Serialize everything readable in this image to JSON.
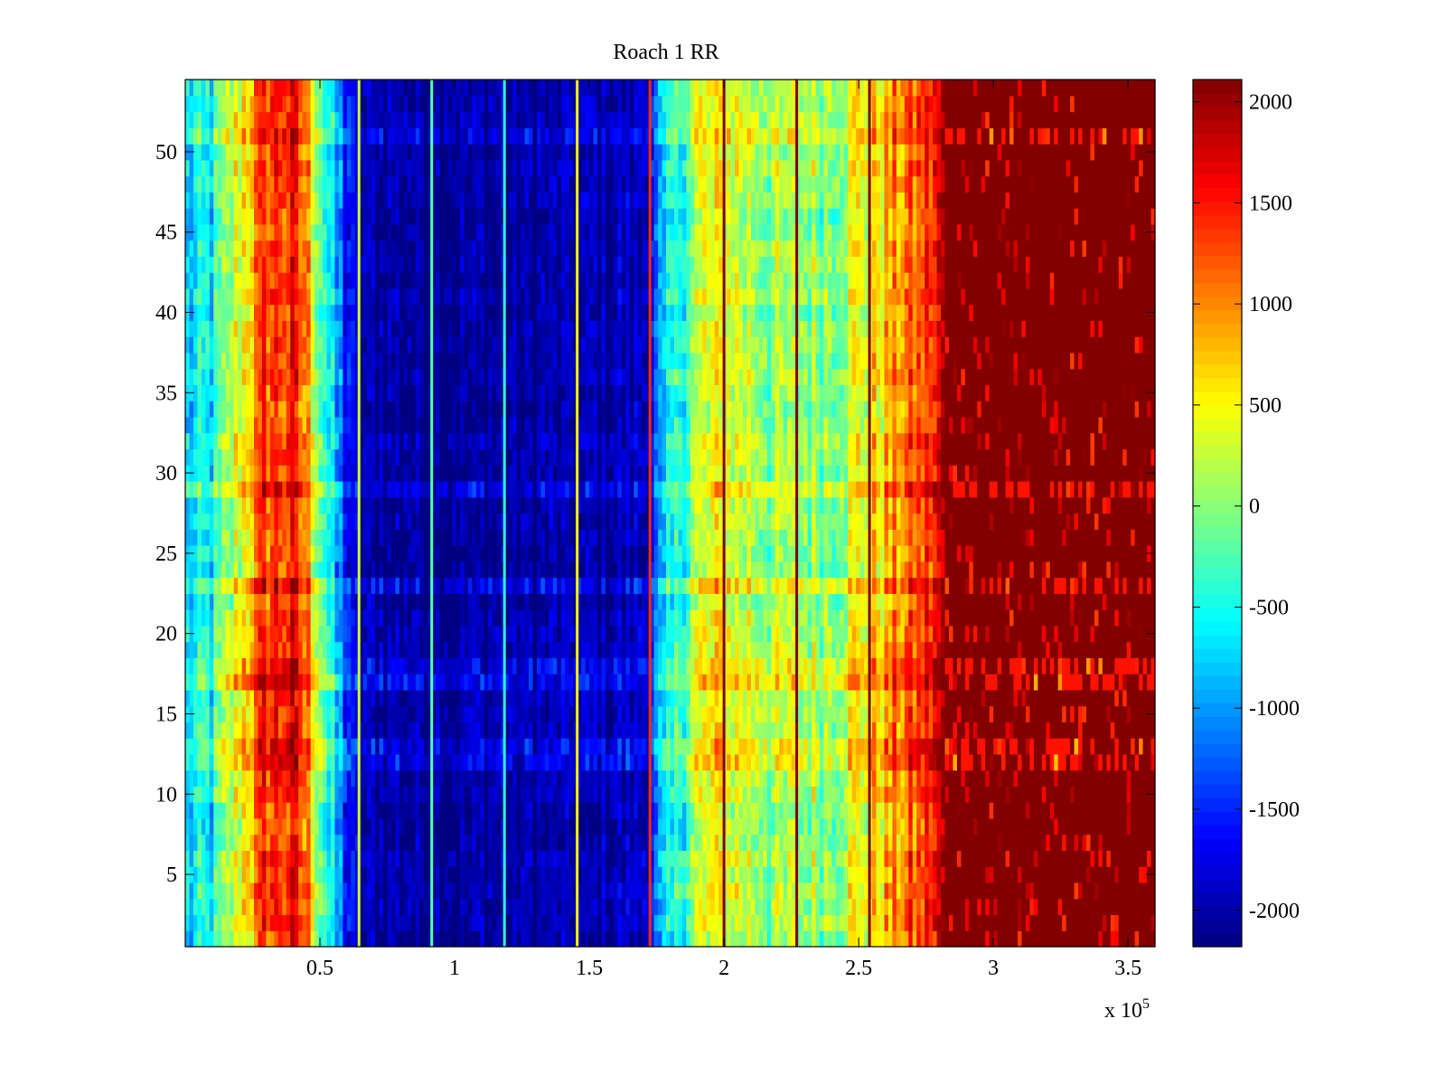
{
  "chart_data": {
    "type": "heatmap",
    "title": "Roach 1 RR",
    "xlabel": "",
    "ylabel": "",
    "x_exponent_label": "x 10",
    "x_exponent_power": "5",
    "xlim": [
      0,
      3.6
    ],
    "ylim": [
      0.5,
      54.5
    ],
    "rows": 54,
    "x_ticks": [
      0.5,
      1,
      1.5,
      2,
      2.5,
      3,
      3.5
    ],
    "x_tick_labels": [
      "0.5",
      "1",
      "1.5",
      "2",
      "2.5",
      "3",
      "3.5"
    ],
    "y_ticks": [
      5,
      10,
      15,
      20,
      25,
      30,
      35,
      40,
      45,
      50
    ],
    "y_tick_labels": [
      "5",
      "10",
      "15",
      "20",
      "25",
      "30",
      "35",
      "40",
      "45",
      "50"
    ],
    "colormap": "jet",
    "clim": [
      -2180,
      2110
    ],
    "colorbar_ticks": [
      -2000,
      -1500,
      -1000,
      -500,
      0,
      500,
      1000,
      1500,
      2000
    ],
    "colorbar_tick_labels": [
      "-2000",
      "-1500",
      "-1000",
      "-500",
      "0",
      "500",
      "1000",
      "1500",
      "2000"
    ],
    "column_profile": {
      "x": [
        0.0,
        0.1,
        0.2,
        0.3,
        0.4,
        0.45,
        0.5,
        0.55,
        0.6,
        0.65,
        0.8,
        1.0,
        1.5,
        1.7,
        1.75,
        1.8,
        1.9,
        2.0,
        2.2,
        2.4,
        2.6,
        2.75,
        2.8,
        2.82,
        3.6
      ],
      "value": [
        -800,
        -600,
        400,
        1300,
        1400,
        1000,
        0,
        -900,
        -1500,
        -2000,
        -2000,
        -2050,
        -2000,
        -1900,
        -1300,
        -700,
        200,
        400,
        0,
        100,
        700,
        1300,
        1600,
        2100,
        2100
      ]
    },
    "vertical_lines": [
      {
        "x": 0.645,
        "value": 300
      },
      {
        "x": 0.915,
        "value": -200
      },
      {
        "x": 1.185,
        "value": -400
      },
      {
        "x": 1.455,
        "value": 500
      },
      {
        "x": 1.725,
        "value": 1400
      },
      {
        "x": 2.0,
        "value": 2100
      },
      {
        "x": 2.27,
        "value": 2100
      },
      {
        "x": 2.54,
        "value": 2100
      }
    ],
    "bright_rows": [
      12,
      13,
      17,
      18,
      23,
      29,
      51
    ]
  }
}
